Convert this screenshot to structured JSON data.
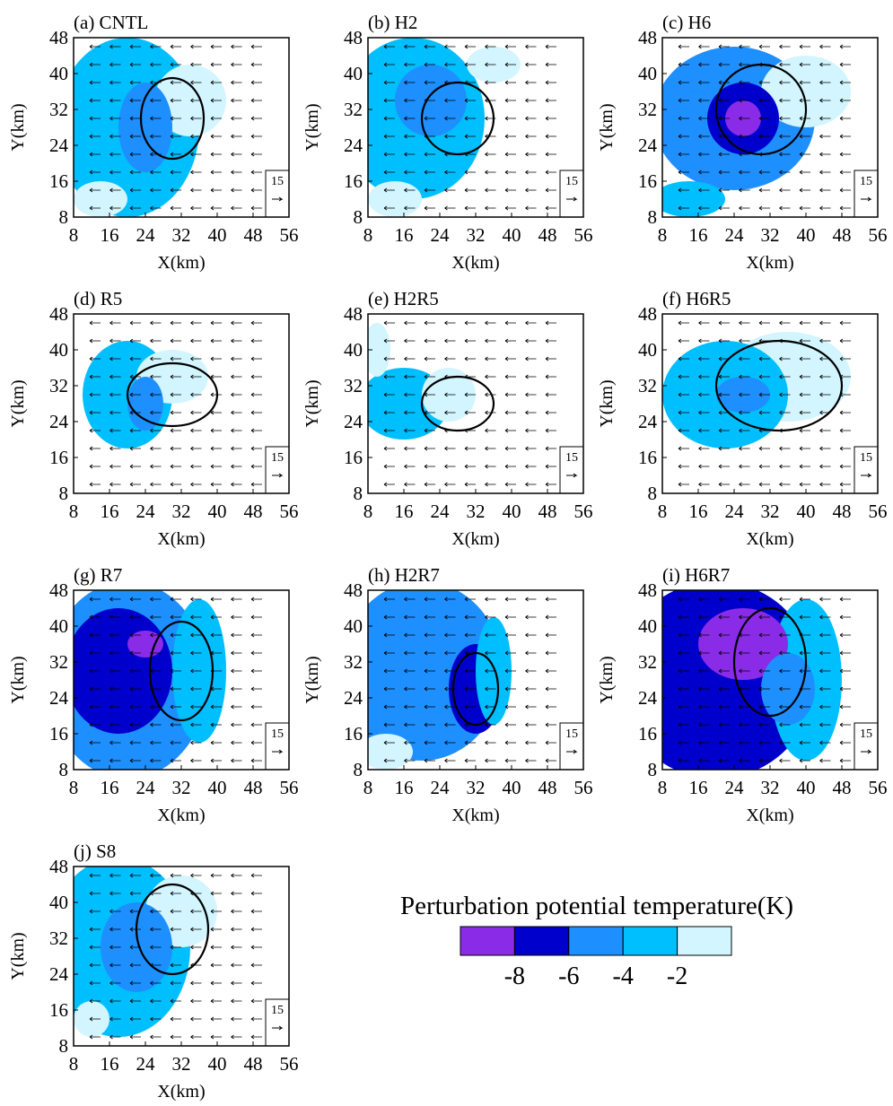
{
  "chart_data": [
    {
      "type": "contour",
      "title": "(a) CNTL",
      "xlabel": "X(km)",
      "ylabel": "Y(km)",
      "xlim": [
        8,
        56
      ],
      "ylim": [
        8,
        48
      ],
      "xticks": [
        8,
        16,
        24,
        32,
        40,
        48,
        56
      ],
      "yticks": [
        8,
        16,
        24,
        32,
        40,
        48
      ],
      "reference_vector": 15
    },
    {
      "type": "contour",
      "title": "(b) H2",
      "xlabel": "X(km)",
      "ylabel": "Y(km)",
      "xlim": [
        8,
        56
      ],
      "ylim": [
        8,
        48
      ],
      "xticks": [
        8,
        16,
        24,
        32,
        40,
        48,
        56
      ],
      "yticks": [
        8,
        16,
        24,
        32,
        40,
        48
      ],
      "reference_vector": 15
    },
    {
      "type": "contour",
      "title": "(c) H6",
      "xlabel": "X(km)",
      "ylabel": "Y(km)",
      "xlim": [
        8,
        56
      ],
      "ylim": [
        8,
        48
      ],
      "xticks": [
        8,
        16,
        24,
        32,
        40,
        48,
        56
      ],
      "yticks": [
        8,
        16,
        24,
        32,
        40,
        48
      ],
      "reference_vector": 15
    },
    {
      "type": "contour",
      "title": "(d) R5",
      "xlabel": "X(km)",
      "ylabel": "Y(km)",
      "xlim": [
        8,
        56
      ],
      "ylim": [
        8,
        48
      ],
      "xticks": [
        8,
        16,
        24,
        32,
        40,
        48,
        56
      ],
      "yticks": [
        8,
        16,
        24,
        32,
        40,
        48
      ],
      "reference_vector": 15
    },
    {
      "type": "contour",
      "title": "(e) H2R5",
      "xlabel": "X(km)",
      "ylabel": "Y(km)",
      "xlim": [
        8,
        56
      ],
      "ylim": [
        8,
        48
      ],
      "xticks": [
        8,
        16,
        24,
        32,
        40,
        48,
        56
      ],
      "yticks": [
        8,
        16,
        24,
        32,
        40,
        48
      ],
      "reference_vector": 15
    },
    {
      "type": "contour",
      "title": "(f) H6R5",
      "xlabel": "X(km)",
      "ylabel": "Y(km)",
      "xlim": [
        8,
        56
      ],
      "ylim": [
        8,
        48
      ],
      "xticks": [
        8,
        16,
        24,
        32,
        40,
        48,
        56
      ],
      "yticks": [
        8,
        16,
        24,
        32,
        40,
        48
      ],
      "reference_vector": 15
    },
    {
      "type": "contour",
      "title": "(g) R7",
      "xlabel": "X(km)",
      "ylabel": "Y(km)",
      "xlim": [
        8,
        56
      ],
      "ylim": [
        8,
        48
      ],
      "xticks": [
        8,
        16,
        24,
        32,
        40,
        48,
        56
      ],
      "yticks": [
        8,
        16,
        24,
        32,
        40,
        48
      ],
      "reference_vector": 15
    },
    {
      "type": "contour",
      "title": "(h) H2R7",
      "xlabel": "X(km)",
      "ylabel": "Y(km)",
      "xlim": [
        8,
        56
      ],
      "ylim": [
        8,
        48
      ],
      "xticks": [
        8,
        16,
        24,
        32,
        40,
        48,
        56
      ],
      "yticks": [
        8,
        16,
        24,
        32,
        40,
        48
      ],
      "reference_vector": 15
    },
    {
      "type": "contour",
      "title": "(i) H6R7",
      "xlabel": "X(km)",
      "ylabel": "Y(km)",
      "xlim": [
        8,
        56
      ],
      "ylim": [
        8,
        48
      ],
      "xticks": [
        8,
        16,
        24,
        32,
        40,
        48,
        56
      ],
      "yticks": [
        8,
        16,
        24,
        32,
        40,
        48
      ],
      "reference_vector": 15
    },
    {
      "type": "contour",
      "title": "(j) S8",
      "xlabel": "X(km)",
      "ylabel": "Y(km)",
      "xlim": [
        8,
        56
      ],
      "ylim": [
        8,
        48
      ],
      "xticks": [
        8,
        16,
        24,
        32,
        40,
        48,
        56
      ],
      "yticks": [
        8,
        16,
        24,
        32,
        40,
        48
      ],
      "reference_vector": 15
    }
  ],
  "colorbar": {
    "title": "Perturbation potential temperature(K)",
    "colors": [
      "#8a2be8",
      "#0000cd",
      "#1e8fff",
      "#00bfff",
      "#d2f5ff"
    ],
    "ticks": [
      -8,
      -6,
      -4,
      -2
    ]
  }
}
